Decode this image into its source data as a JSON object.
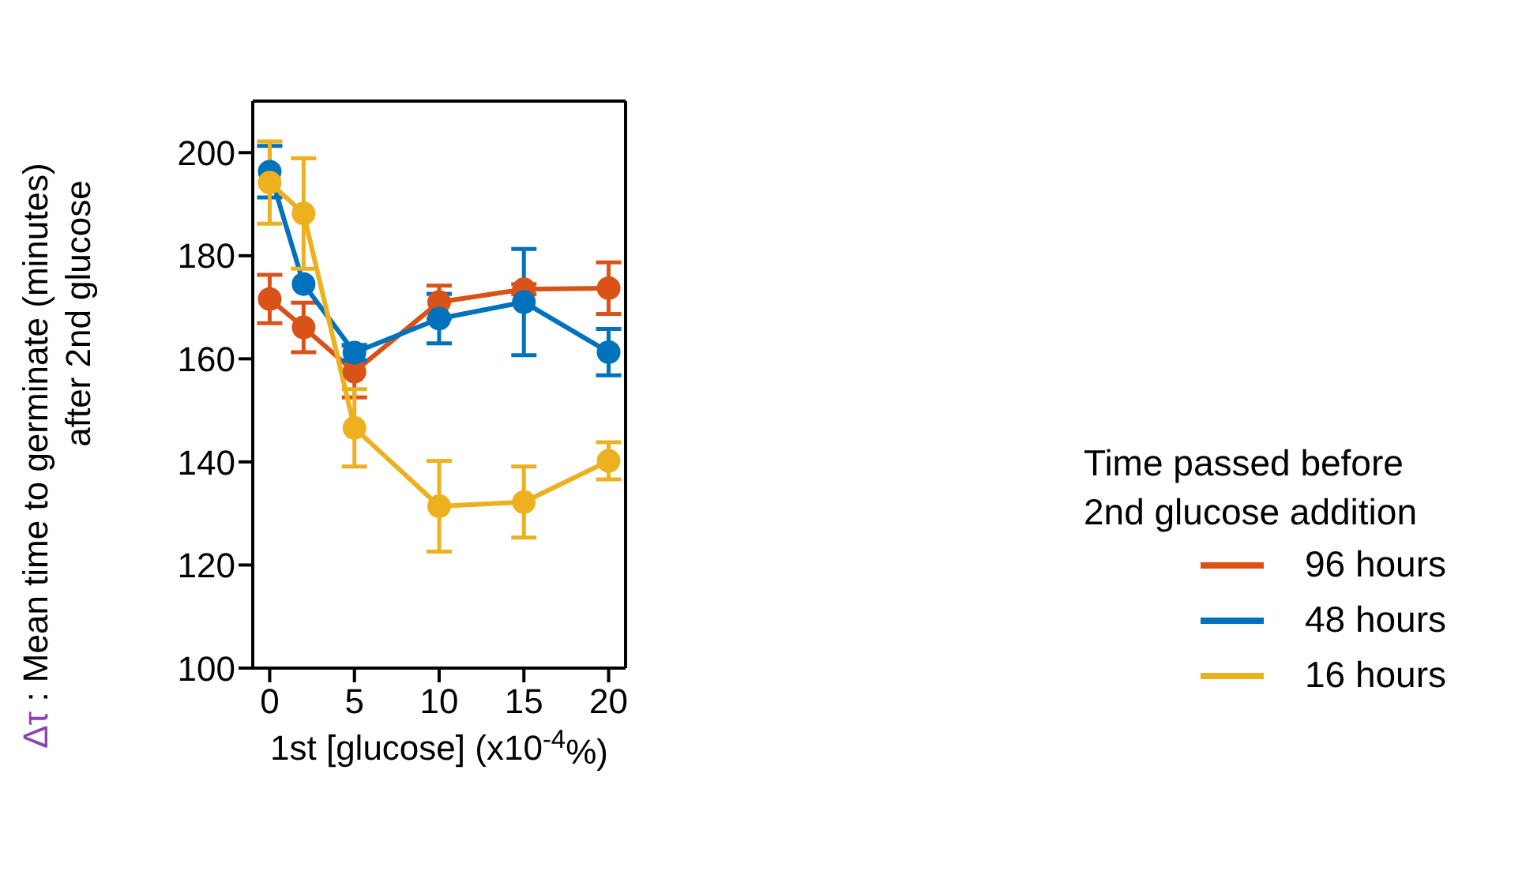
{
  "chart_data": {
    "type": "line",
    "xlabel": "1st [glucose] (x10$^{-4}$%)",
    "ylabel": "Δτ : Mean time to germinate (minutes)\nafter 2nd glucose",
    "legend_title": "Time passed before\n2nd glucose addition",
    "x": [
      0,
      2,
      5,
      10,
      15,
      20
    ],
    "series": [
      {
        "name": "96 hours",
        "color": "#d95319",
        "values": [
          171.6,
          166.1,
          157.5,
          171.0,
          173.5,
          173.7
        ],
        "errors": [
          4.7,
          4.8,
          5,
          3.2,
          1,
          5
        ]
      },
      {
        "name": "48 hours",
        "color": "#0072bd",
        "values": [
          196.3,
          174.5,
          161.2,
          167.8,
          171.0,
          161.3
        ],
        "errors": [
          5,
          null,
          1.5,
          4.8,
          10.3,
          4.5
        ]
      },
      {
        "name": "16 hours",
        "color": "#edb120",
        "values": [
          194.2,
          188.2,
          146.6,
          131.4,
          132.2,
          140.2
        ],
        "errors": [
          8,
          10.7,
          7.5,
          8.8,
          6.9,
          3.6
        ]
      }
    ],
    "xlim": [
      -1,
      21
    ],
    "xticks": [
      0,
      5,
      10,
      15,
      20
    ],
    "ylim": [
      100,
      210
    ],
    "yticks": [
      100,
      120,
      140,
      160,
      180,
      200
    ],
    "grid": false,
    "legend": "right",
    "marker": "circle",
    "line_style": "solid"
  }
}
